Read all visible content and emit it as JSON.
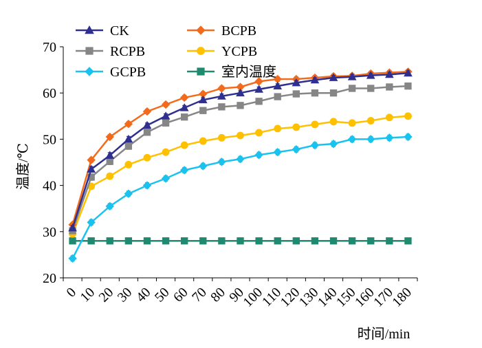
{
  "chart_data": {
    "type": "line",
    "title": "",
    "xlabel": "时间/min",
    "ylabel": "温度/℃",
    "x": [
      5,
      15,
      25,
      35,
      45,
      55,
      65,
      75,
      85,
      95,
      105,
      115,
      125,
      135,
      145,
      155,
      165,
      175,
      185
    ],
    "xlim": [
      0,
      190
    ],
    "ylim": [
      20,
      70
    ],
    "x_ticks": [
      0,
      10,
      20,
      30,
      40,
      50,
      60,
      70,
      80,
      90,
      100,
      110,
      120,
      130,
      140,
      150,
      160,
      170,
      180
    ],
    "y_ticks": [
      20,
      30,
      40,
      50,
      60,
      70
    ],
    "grid": false,
    "legend_position": "top",
    "series": [
      {
        "name": "CK",
        "color": "#2e2f8f",
        "marker": "triangle",
        "values": [
          30.8,
          43.5,
          46.5,
          50.0,
          53.0,
          55.0,
          56.8,
          58.5,
          59.3,
          60.0,
          60.8,
          61.5,
          62.2,
          62.8,
          63.3,
          63.5,
          63.8,
          64.0,
          64.3
        ],
        "errors": [
          0.5,
          0.6,
          0.6,
          0.6,
          0.5,
          0.5,
          0.5,
          0.5,
          0.5,
          0.5,
          0.5,
          0.5,
          0.5,
          0.5,
          0.5,
          0.5,
          0.5,
          0.5,
          0.5
        ]
      },
      {
        "name": "BCPB",
        "color": "#f26b1d",
        "marker": "diamond",
        "values": [
          31.5,
          45.5,
          50.5,
          53.3,
          56.0,
          57.5,
          59.0,
          59.8,
          61.0,
          61.3,
          62.5,
          63.0,
          63.0,
          63.3,
          63.6,
          63.7,
          64.2,
          64.4,
          64.6
        ],
        "errors": [
          0.5,
          0.5,
          0.5,
          0.5,
          0.5,
          0.5,
          0.5,
          0.5,
          0.5,
          0.5,
          0.5,
          0.5,
          0.5,
          0.5,
          0.5,
          0.5,
          0.5,
          0.5,
          0.5
        ]
      },
      {
        "name": "RCPB",
        "color": "#868686",
        "marker": "square",
        "values": [
          30.2,
          41.8,
          45.2,
          48.5,
          51.5,
          53.5,
          54.8,
          56.2,
          57.0,
          57.3,
          58.2,
          59.2,
          59.8,
          60.0,
          60.0,
          61.0,
          61.0,
          61.3,
          61.5
        ],
        "errors": [
          0.6,
          0.7,
          0.7,
          0.7,
          0.6,
          0.6,
          0.6,
          0.6,
          0.6,
          0.6,
          0.6,
          0.6,
          0.6,
          0.6,
          0.6,
          0.6,
          0.6,
          0.6,
          0.6
        ]
      },
      {
        "name": "YCPB",
        "color": "#ffc000",
        "marker": "circle",
        "values": [
          29.5,
          39.8,
          42.0,
          44.5,
          46.0,
          47.2,
          48.7,
          49.6,
          50.3,
          50.8,
          51.4,
          52.3,
          52.6,
          53.2,
          53.8,
          53.5,
          54.0,
          54.7,
          55.0
        ],
        "errors": [
          0.6,
          0.6,
          0.6,
          0.6,
          0.6,
          0.6,
          0.6,
          0.6,
          0.6,
          0.6,
          0.6,
          0.6,
          0.6,
          0.6,
          0.6,
          0.6,
          0.6,
          0.6,
          0.6
        ]
      },
      {
        "name": "GCPB",
        "color": "#19c2ef",
        "marker": "diamond",
        "values": [
          24.2,
          32.0,
          35.5,
          38.2,
          40.0,
          41.5,
          43.3,
          44.2,
          45.1,
          45.7,
          46.6,
          47.2,
          47.8,
          48.7,
          49.0,
          50.0,
          50.0,
          50.3,
          50.5
        ],
        "errors": [
          0.6,
          0.6,
          0.6,
          0.6,
          0.6,
          0.6,
          0.6,
          0.6,
          0.6,
          0.6,
          0.6,
          0.6,
          0.6,
          0.6,
          0.6,
          0.6,
          0.6,
          0.6,
          0.6
        ]
      },
      {
        "name": "室内温度",
        "color": "#1f8a70",
        "marker": "square",
        "values": [
          28.0,
          28.0,
          28.0,
          28.0,
          28.0,
          28.0,
          28.0,
          28.0,
          28.0,
          28.0,
          28.0,
          28.0,
          28.0,
          28.0,
          28.0,
          28.0,
          28.0,
          28.0,
          28.0
        ],
        "errors": [
          0.4,
          0.4,
          0.4,
          0.4,
          0.4,
          0.4,
          0.4,
          0.4,
          0.4,
          0.4,
          0.4,
          0.4,
          0.4,
          0.4,
          0.4,
          0.4,
          0.4,
          0.4,
          0.4
        ]
      }
    ]
  }
}
